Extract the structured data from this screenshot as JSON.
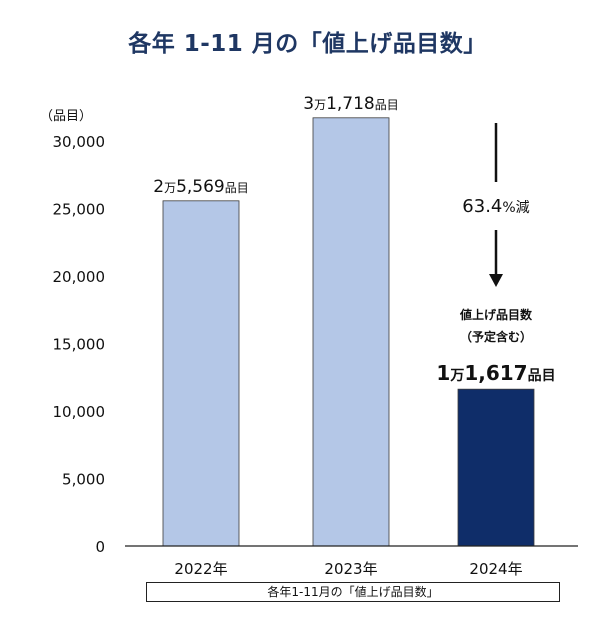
{
  "title": "各年 1-11 月の「値上げ品目数」",
  "caption": "各年1-11月の「値上げ品目数」",
  "chart_data": {
    "type": "bar",
    "title": "各年 1-11 月の「値上げ品目数」",
    "ylabel": "（品目）",
    "ylim": [
      0,
      30000
    ],
    "yticks": [
      0,
      5000,
      10000,
      15000,
      20000,
      25000,
      30000
    ],
    "ytick_labels": [
      "0",
      "5,000",
      "10,000",
      "15,000",
      "20,000",
      "25,000",
      "30,000"
    ],
    "categories": [
      "2022年",
      "2023年",
      "2024年"
    ],
    "values": [
      25569,
      31718,
      11617
    ],
    "colors": [
      "#b4c7e7",
      "#b4c7e7",
      "#0f2d69"
    ],
    "value_labels": [
      {
        "num": "2",
        "man": "万",
        "rest": "5,569",
        "unit": "品目"
      },
      {
        "num": "3",
        "man": "万",
        "rest": "1,718",
        "unit": "品目"
      },
      {
        "num": "1",
        "man": "万",
        "rest": "1,617",
        "unit": "品目"
      }
    ],
    "annotations": {
      "change": "63.4",
      "change_suffix": "%減",
      "note_line1": "値上げ品目数",
      "note_line2": "（予定含む）"
    },
    "grid": false,
    "legend": "none"
  }
}
